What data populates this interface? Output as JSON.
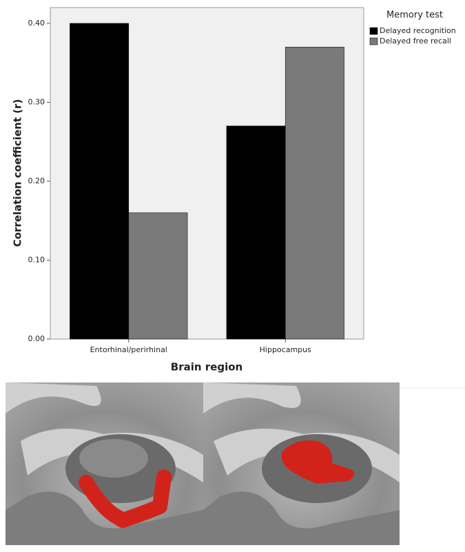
{
  "chart_data": {
    "type": "bar",
    "xlabel": "Brain region",
    "ylabel": "Correlation coefficient (r)",
    "categories": [
      "Entorhinal/perirhinal",
      "Hippocampus"
    ],
    "series": [
      {
        "name": "Delayed recognition",
        "color": "#000000",
        "values": [
          0.4,
          0.27
        ]
      },
      {
        "name": "Delayed free recall",
        "color": "#7a7a7a",
        "values": [
          0.16,
          0.37
        ]
      }
    ],
    "ylim": [
      0,
      0.42
    ],
    "yticks": [
      {
        "value": 0,
        "label": "0.00"
      },
      {
        "value": 0.1,
        "label": "0.10"
      },
      {
        "value": 0.2,
        "label": "0.20"
      },
      {
        "value": 0.3,
        "label": "0.30"
      },
      {
        "value": 0.4,
        "label": "0.40"
      }
    ],
    "legend": {
      "title": "Memory test",
      "position": "right"
    }
  }
}
